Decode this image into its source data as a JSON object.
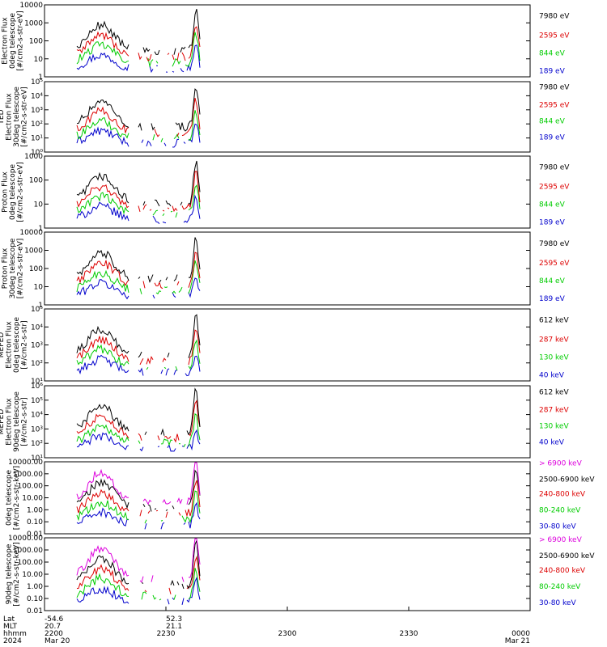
{
  "chart_data": {
    "type": "line",
    "x_axis": {
      "rows": [
        {
          "label": "Lat",
          "values": [
            "-54.6",
            "52.3"
          ]
        },
        {
          "label": "MLT",
          "values": [
            "20.7",
            "21.1"
          ]
        },
        {
          "label": "hhmm",
          "values": [
            "2200",
            "2230",
            "2300",
            "2330",
            "0000"
          ]
        },
        {
          "label": "2024",
          "values": [
            "Mar 20",
            "Mar 21"
          ]
        }
      ]
    },
    "panels": [
      {
        "ylabel": [
          "Electron Flux",
          "0deg telescope",
          "[#/cm2-s-str-eV]"
        ],
        "log": true,
        "ticks": [
          "1",
          "10",
          "100",
          "1000",
          "10000"
        ],
        "legend": [
          {
            "label": "7980 eV",
            "color": "#000000"
          },
          {
            "label": "2595 eV",
            "color": "#dd0000"
          },
          {
            "label": "844 eV",
            "color": "#00cc00"
          },
          {
            "label": "189 eV",
            "color": "#0000cc"
          }
        ]
      },
      {
        "ylabel": [
          "TED",
          "Electron Flux",
          "30deg telescope",
          "[#/cm2-s-str-eV]"
        ],
        "log": true,
        "ticks": [
          "10⁰",
          "10¹",
          "10²",
          "10³",
          "10⁴",
          "10⁵"
        ],
        "legend": [
          {
            "label": "7980 eV",
            "color": "#000000"
          },
          {
            "label": "2595 eV",
            "color": "#dd0000"
          },
          {
            "label": "844 eV",
            "color": "#00cc00"
          },
          {
            "label": "189 eV",
            "color": "#0000cc"
          }
        ]
      },
      {
        "ylabel": [
          "Proton Flux",
          "0deg telescope",
          "[#/cm2-s-str-eV]"
        ],
        "log": true,
        "ticks": [
          "1",
          "10",
          "100",
          "1000"
        ],
        "legend": [
          {
            "label": "7980 eV",
            "color": "#000000"
          },
          {
            "label": "2595 eV",
            "color": "#dd0000"
          },
          {
            "label": "844 eV",
            "color": "#00cc00"
          },
          {
            "label": "189 eV",
            "color": "#0000cc"
          }
        ]
      },
      {
        "ylabel": [
          "Proton Flux",
          "30deg telescope",
          "[#/cm2-s-str-eV]"
        ],
        "log": true,
        "ticks": [
          "1",
          "10",
          "100",
          "1000",
          "10000"
        ],
        "legend": [
          {
            "label": "7980 eV",
            "color": "#000000"
          },
          {
            "label": "2595 eV",
            "color": "#dd0000"
          },
          {
            "label": "844 eV",
            "color": "#00cc00"
          },
          {
            "label": "189 eV",
            "color": "#0000cc"
          }
        ]
      },
      {
        "ylabel": [
          "MEPED",
          "Electron Flux",
          "0deg telescope",
          "[#/cm2-s-str]"
        ],
        "log": true,
        "ticks": [
          "10¹",
          "10²",
          "10³",
          "10⁴",
          "10⁵"
        ],
        "legend": [
          {
            "label": "612 keV",
            "color": "#000000"
          },
          {
            "label": "287 keV",
            "color": "#dd0000"
          },
          {
            "label": "130 keV",
            "color": "#00cc00"
          },
          {
            "label": "40 keV",
            "color": "#0000cc"
          }
        ]
      },
      {
        "ylabel": [
          "MEPED",
          "Electron Flux",
          "90deg telescope",
          "[#/cm2-s-str]"
        ],
        "log": true,
        "ticks": [
          "10¹",
          "10²",
          "10³",
          "10⁴",
          "10⁵",
          "10⁶"
        ],
        "legend": [
          {
            "label": "612 keV",
            "color": "#000000"
          },
          {
            "label": "287 keV",
            "color": "#dd0000"
          },
          {
            "label": "130 keV",
            "color": "#00cc00"
          },
          {
            "label": "40 keV",
            "color": "#0000cc"
          }
        ]
      },
      {
        "ylabel": [
          "0deg telescope",
          "[#/cm2-s-str-keV]"
        ],
        "log": true,
        "ticks": [
          "0.01",
          "0.10",
          "1.00",
          "10.00",
          "100.00",
          "1000.00",
          "10000.00"
        ],
        "legend": [
          {
            "label": "> 6900 keV",
            "color": "#dd00dd"
          },
          {
            "label": "2500-6900 keV",
            "color": "#000000"
          },
          {
            "label": "240-800 keV",
            "color": "#dd0000"
          },
          {
            "label": "80-240 keV",
            "color": "#00cc00"
          },
          {
            "label": "30-80 keV",
            "color": "#0000cc"
          }
        ]
      },
      {
        "ylabel": [
          "90deg telescope",
          "[#/cm2-s-str-keV]"
        ],
        "log": true,
        "ticks": [
          "0.01",
          "0.10",
          "1.00",
          "10.00",
          "100.00",
          "1000.00",
          "10000.00"
        ],
        "legend": [
          {
            "label": "> 6900 keV",
            "color": "#dd00dd"
          },
          {
            "label": "2500-6900 keV",
            "color": "#000000"
          },
          {
            "label": "240-800 keV",
            "color": "#dd0000"
          },
          {
            "label": "80-240 keV",
            "color": "#00cc00"
          },
          {
            "label": "30-80 keV",
            "color": "#0000cc"
          }
        ]
      }
    ]
  }
}
